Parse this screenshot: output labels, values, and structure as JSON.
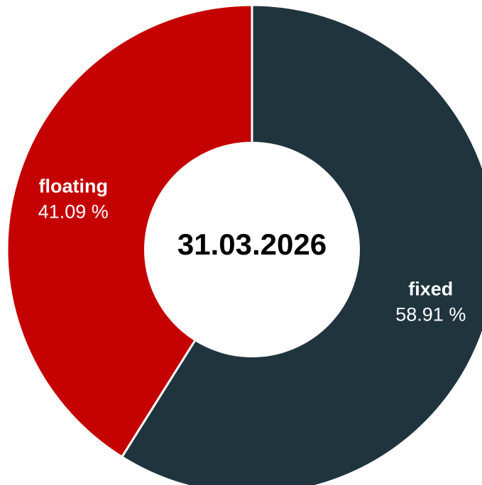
{
  "chart_data": {
    "type": "pie",
    "variant": "donut",
    "title": "",
    "center_label": "31.03.2026",
    "slices": [
      {
        "name": "fixed",
        "value": 58.91,
        "value_label": "58.91 %",
        "color": "#1f343d"
      },
      {
        "name": "floating",
        "value": 41.09,
        "value_label": "41.09 %",
        "color": "#c40000"
      }
    ],
    "start_angle": "12 o'clock",
    "direction": "clockwise",
    "legend": "none"
  }
}
